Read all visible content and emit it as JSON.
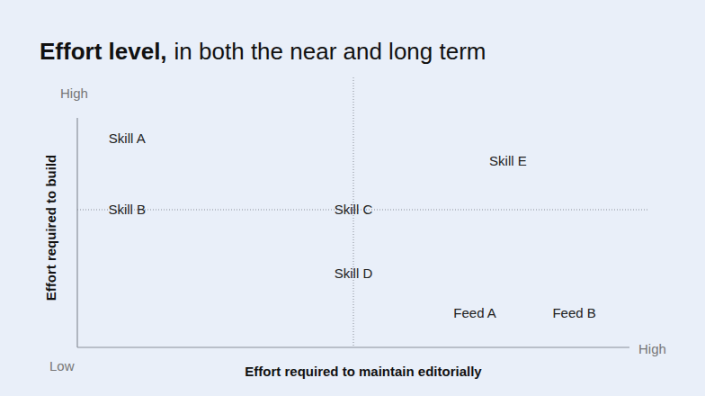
{
  "chart_data": {
    "type": "scatter",
    "title": "Effort level,",
    "subtitle": "in both the near and long term",
    "x_label": "Effort required to maintain editorially",
    "y_label": "Effort required to build",
    "axis_end_labels": {
      "low": "Low",
      "x_high": "High",
      "y_high": "High"
    },
    "xlim": [
      0,
      10
    ],
    "ylim": [
      0,
      10
    ],
    "tick_labels": false,
    "grid": false,
    "dividers": {
      "x": 5,
      "y": 6
    },
    "point_labels": [
      "Skill A",
      "Skill B",
      "Skill C",
      "Skill D",
      "Skill E",
      "Feed A",
      "Feed B"
    ],
    "x": [
      0.9,
      0.9,
      5,
      5,
      7.8,
      7.2,
      9.0
    ],
    "values": [
      9.1,
      6,
      6,
      3.2,
      8.1,
      1.5,
      1.5
    ]
  }
}
